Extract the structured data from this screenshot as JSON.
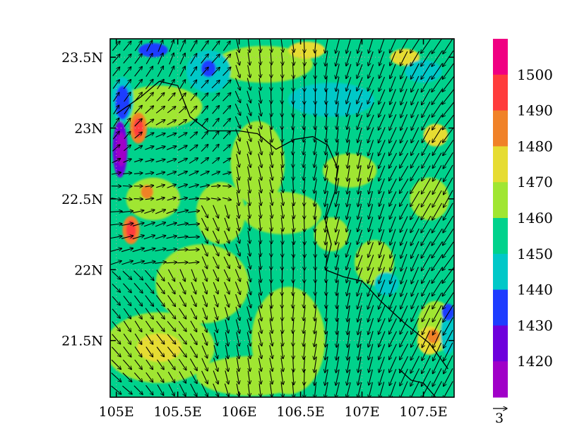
{
  "chart_data": {
    "type": "heatmap",
    "title": "",
    "xlabel": "",
    "ylabel": "",
    "x_ticks": [
      "105E",
      "105.5E",
      "106E",
      "106.5E",
      "107E",
      "107.5E"
    ],
    "x_tick_values": [
      105.0,
      105.5,
      106.0,
      106.5,
      107.0,
      107.5
    ],
    "y_ticks": [
      "23.5N",
      "23N",
      "22.5N",
      "22N",
      "21.5N"
    ],
    "y_tick_values": [
      23.5,
      23.0,
      22.5,
      22.0,
      21.5
    ],
    "xlim": [
      104.95,
      107.75
    ],
    "ylim": [
      21.1,
      23.63
    ],
    "colorbar": {
      "labels": [
        "1420",
        "1430",
        "1440",
        "1450",
        "1460",
        "1470",
        "1480",
        "1490",
        "1500"
      ],
      "colors": [
        "#a000c8",
        "#6e00dc",
        "#1e3cff",
        "#00c8c8",
        "#00d28c",
        "#a0e632",
        "#e6dc32",
        "#f08228",
        "#ff3c3c",
        "#f00082"
      ]
    },
    "field_base_color": "#00d28c",
    "vector_reference": {
      "label": "3"
    },
    "grid": true,
    "field_patches": [
      {
        "lon": 105.7,
        "lat": 21.9,
        "rx": 0.38,
        "ry": 0.28,
        "level": "1460-1470"
      },
      {
        "lon": 105.35,
        "lat": 21.45,
        "rx": 0.45,
        "ry": 0.25,
        "level": "1460-1470"
      },
      {
        "lon": 106.4,
        "lat": 21.5,
        "rx": 0.3,
        "ry": 0.38,
        "level": "1460-1470"
      },
      {
        "lon": 106.15,
        "lat": 22.75,
        "rx": 0.22,
        "ry": 0.3,
        "level": "1460-1470"
      },
      {
        "lon": 106.35,
        "lat": 22.4,
        "rx": 0.32,
        "ry": 0.15,
        "level": "1460-1470"
      },
      {
        "lon": 105.85,
        "lat": 22.4,
        "rx": 0.2,
        "ry": 0.22,
        "level": "1460-1470"
      },
      {
        "lon": 105.35,
        "lat": 23.15,
        "rx": 0.35,
        "ry": 0.15,
        "level": "1460-1470"
      },
      {
        "lon": 106.2,
        "lat": 23.45,
        "rx": 0.4,
        "ry": 0.13,
        "level": "1460-1470"
      },
      {
        "lon": 105.3,
        "lat": 22.5,
        "rx": 0.22,
        "ry": 0.15,
        "level": "1460-1470"
      },
      {
        "lon": 106.1,
        "lat": 21.25,
        "rx": 0.45,
        "ry": 0.14,
        "level": "1460-1470"
      },
      {
        "lon": 107.1,
        "lat": 22.05,
        "rx": 0.16,
        "ry": 0.16,
        "level": "1460-1470"
      },
      {
        "lon": 106.9,
        "lat": 22.7,
        "rx": 0.22,
        "ry": 0.12,
        "level": "1460-1470"
      },
      {
        "lon": 107.6,
        "lat": 21.6,
        "rx": 0.15,
        "ry": 0.18,
        "level": "1460-1470"
      },
      {
        "lon": 107.55,
        "lat": 22.5,
        "rx": 0.16,
        "ry": 0.15,
        "level": "1460-1470"
      },
      {
        "lon": 106.75,
        "lat": 22.25,
        "rx": 0.14,
        "ry": 0.12,
        "level": "1460-1470"
      },
      {
        "lon": 105.35,
        "lat": 21.45,
        "rx": 0.18,
        "ry": 0.1,
        "level": "1470-1480"
      },
      {
        "lon": 106.55,
        "lat": 23.55,
        "rx": 0.15,
        "ry": 0.06,
        "level": "1470-1480"
      },
      {
        "lon": 107.35,
        "lat": 23.5,
        "rx": 0.12,
        "ry": 0.06,
        "level": "1470-1480"
      },
      {
        "lon": 107.55,
        "lat": 21.5,
        "rx": 0.1,
        "ry": 0.1,
        "level": "1470-1480"
      },
      {
        "lon": 107.6,
        "lat": 22.95,
        "rx": 0.1,
        "ry": 0.08,
        "level": "1470-1480"
      },
      {
        "lon": 105.05,
        "lat": 23.2,
        "rx": 0.09,
        "ry": 0.16,
        "level": "1440-1450"
      },
      {
        "lon": 105.75,
        "lat": 23.4,
        "rx": 0.18,
        "ry": 0.15,
        "level": "1440-1450"
      },
      {
        "lon": 106.75,
        "lat": 23.2,
        "rx": 0.35,
        "ry": 0.12,
        "level": "1440-1450"
      },
      {
        "lon": 107.5,
        "lat": 23.4,
        "rx": 0.15,
        "ry": 0.08,
        "level": "1440-1450"
      },
      {
        "lon": 107.2,
        "lat": 21.9,
        "rx": 0.1,
        "ry": 0.08,
        "level": "1440-1450"
      },
      {
        "lon": 107.7,
        "lat": 21.55,
        "rx": 0.06,
        "ry": 0.15,
        "level": "1440-1450"
      },
      {
        "lon": 105.05,
        "lat": 23.18,
        "rx": 0.06,
        "ry": 0.12,
        "level": "1430-1440"
      },
      {
        "lon": 105.3,
        "lat": 23.55,
        "rx": 0.12,
        "ry": 0.05,
        "level": "1430-1440"
      },
      {
        "lon": 105.75,
        "lat": 23.42,
        "rx": 0.06,
        "ry": 0.06,
        "level": "1430-1440"
      },
      {
        "lon": 107.7,
        "lat": 21.7,
        "rx": 0.05,
        "ry": 0.06,
        "level": "1430-1440"
      },
      {
        "lon": 105.03,
        "lat": 22.85,
        "rx": 0.06,
        "ry": 0.2,
        "level": "1420-1430"
      },
      {
        "lon": 105.04,
        "lat": 22.85,
        "rx": 0.04,
        "ry": 0.12,
        "level": "<1420"
      },
      {
        "lon": 105.18,
        "lat": 23.0,
        "rx": 0.07,
        "ry": 0.11,
        "level": "1480-1490"
      },
      {
        "lon": 105.18,
        "lat": 23.0,
        "rx": 0.04,
        "ry": 0.07,
        "level": "1490-1500"
      },
      {
        "lon": 105.12,
        "lat": 22.28,
        "rx": 0.07,
        "ry": 0.1,
        "level": "1480-1490"
      },
      {
        "lon": 105.12,
        "lat": 22.28,
        "rx": 0.04,
        "ry": 0.07,
        "level": "1490-1500"
      },
      {
        "lon": 107.58,
        "lat": 21.53,
        "rx": 0.05,
        "ry": 0.05,
        "level": "1480-1490"
      },
      {
        "lon": 105.25,
        "lat": 22.55,
        "rx": 0.05,
        "ry": 0.05,
        "level": "1480-1490"
      }
    ],
    "wind": {
      "lon_start": 105.0,
      "lon_step": 0.09,
      "lon_count": 31,
      "lat_start": 21.15,
      "lat_step": 0.09,
      "lat_count": 28,
      "dominant_direction": "northeasterly in the east, north-northwesterly in the centre, northwesterly in the west"
    },
    "borders": [
      [
        [
          105.0,
          23.1
        ],
        [
          105.2,
          23.22
        ],
        [
          105.35,
          23.33
        ],
        [
          105.5,
          23.3
        ],
        [
          105.6,
          23.08
        ],
        [
          105.75,
          22.98
        ],
        [
          105.85,
          22.98
        ],
        [
          106.0,
          22.98
        ],
        [
          106.15,
          22.96
        ],
        [
          106.3,
          22.85
        ],
        [
          106.45,
          22.92
        ],
        [
          106.6,
          22.94
        ],
        [
          106.72,
          22.88
        ],
        [
          106.8,
          22.72
        ],
        [
          106.78,
          22.55
        ],
        [
          106.7,
          22.35
        ],
        [
          106.75,
          22.18
        ],
        [
          106.7,
          22.0
        ],
        [
          106.85,
          21.95
        ],
        [
          107.0,
          21.92
        ],
        [
          107.15,
          21.78
        ],
        [
          107.25,
          21.7
        ],
        [
          107.35,
          21.62
        ],
        [
          107.45,
          21.55
        ],
        [
          107.55,
          21.48
        ],
        [
          107.7,
          21.3
        ]
      ],
      [
        [
          107.3,
          21.3
        ],
        [
          107.4,
          21.22
        ],
        [
          107.5,
          21.2
        ],
        [
          107.6,
          21.1
        ]
      ]
    ]
  }
}
